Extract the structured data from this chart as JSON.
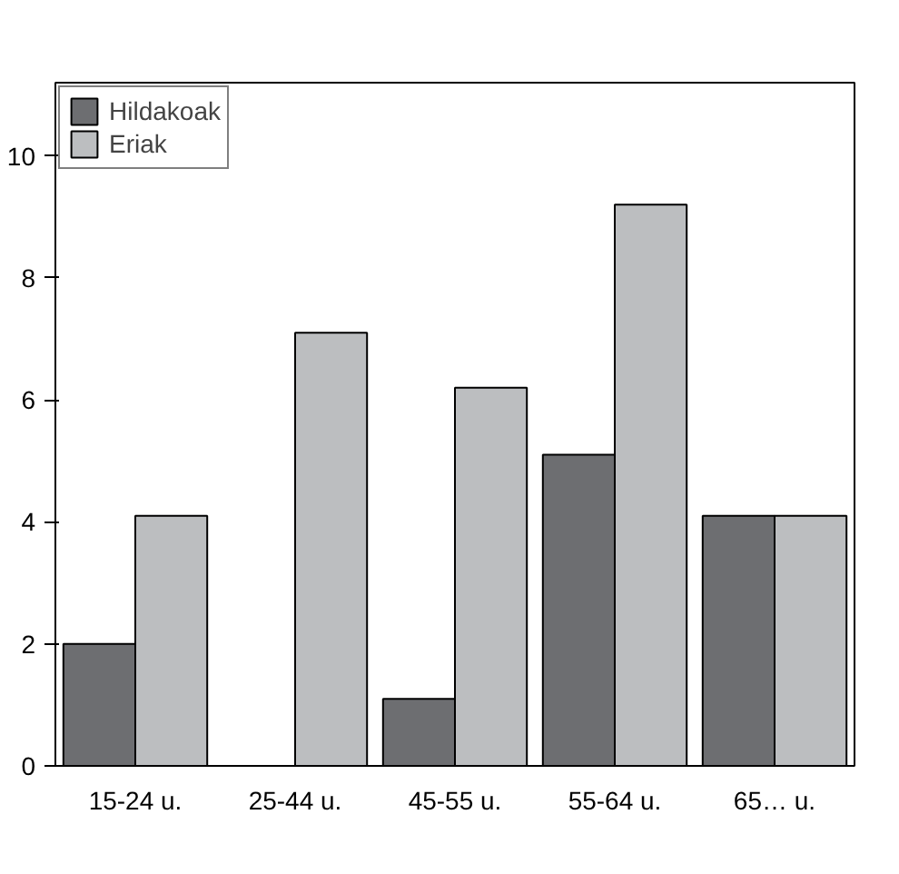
{
  "chart_data": {
    "type": "bar",
    "categories": [
      "15-24 u.",
      "25-44 u.",
      "45-55 u.",
      "55-64 u.",
      "65… u."
    ],
    "series": [
      {
        "name": "Hildakoak",
        "color": "#6d6e71",
        "values": [
          2,
          0,
          1.1,
          5.1,
          4.1
        ]
      },
      {
        "name": "Eriak",
        "color": "#bcbec0",
        "values": [
          4.1,
          7.1,
          6.2,
          9.2,
          4.1
        ]
      }
    ],
    "ylim": [
      0,
      11.2
    ],
    "yticks": [
      0,
      2,
      4,
      6,
      8,
      10
    ],
    "grid": false,
    "legend": "top left"
  }
}
